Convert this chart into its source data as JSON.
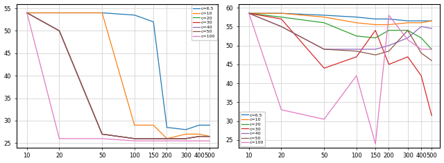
{
  "x": [
    10,
    20,
    50,
    100,
    150,
    200,
    300,
    400,
    500
  ],
  "left": {
    "c6.5": [
      54,
      54,
      54,
      53.5,
      52,
      28.5,
      28,
      29,
      29
    ],
    "c10": [
      54,
      54,
      54,
      29,
      29,
      26,
      27,
      27,
      26.5
    ],
    "c20": [
      54,
      50,
      27,
      26,
      26,
      26,
      26,
      26.5,
      26.5
    ],
    "c30": [
      54,
      50,
      27,
      26,
      26,
      26,
      26,
      26.5,
      26.5
    ],
    "c40": [
      54,
      50,
      27,
      26,
      26,
      26,
      26,
      26.5,
      26.5
    ],
    "c50": [
      54,
      50,
      27,
      26,
      26,
      26,
      26,
      26.5,
      26.5
    ],
    "c100": [
      54,
      26,
      26,
      25.5,
      25.5,
      25.5,
      25.5,
      25.5,
      25.5
    ]
  },
  "right": {
    "c6.5": [
      58.5,
      58.5,
      58,
      57.5,
      57,
      57,
      56.5,
      56.5,
      56.5
    ],
    "c10": [
      58.5,
      58.5,
      57.5,
      56,
      55.5,
      55.5,
      56,
      56,
      56.5
    ],
    "c20": [
      58.5,
      57.5,
      56,
      52.5,
      52,
      54,
      54,
      52,
      49
    ],
    "c30": [
      58.5,
      57,
      44,
      47,
      54,
      45,
      47,
      42,
      31.5
    ],
    "c40": [
      58.5,
      55,
      49,
      49,
      49,
      50,
      52,
      55,
      54.5
    ],
    "c50": [
      58.5,
      55,
      49,
      48.5,
      47.5,
      48.5,
      54,
      48,
      46
    ],
    "c100": [
      58.5,
      33,
      30.5,
      42,
      24,
      58,
      51.5,
      49,
      49
    ]
  },
  "colors": {
    "c6.5": "#1f77b4",
    "c10": "#ff7f0e",
    "c20": "#2ca02c",
    "c30": "#d62728",
    "c40": "#9467bd",
    "c50": "#8c564b",
    "c100": "#e377c2"
  },
  "left_ylim": [
    24,
    56
  ],
  "right_ylim": [
    23,
    61
  ],
  "left_yticks": [
    25,
    30,
    35,
    40,
    45,
    50,
    55
  ],
  "right_yticks": [
    25,
    30,
    35,
    40,
    45,
    50,
    55,
    60
  ],
  "xticks": [
    10,
    20,
    50,
    100,
    150,
    200,
    300,
    400,
    500
  ],
  "legend_labels_left": [
    "c=6.5",
    "c=10",
    "c=20",
    "c=30",
    "c=40",
    "c=50",
    "c=100"
  ],
  "legend_labels_right": [
    "c=6.5",
    "c=10",
    "c=20",
    "c=30",
    "c=40",
    "c=50",
    "c=100"
  ],
  "figsize": [
    6.4,
    2.35
  ],
  "dpi": 100
}
